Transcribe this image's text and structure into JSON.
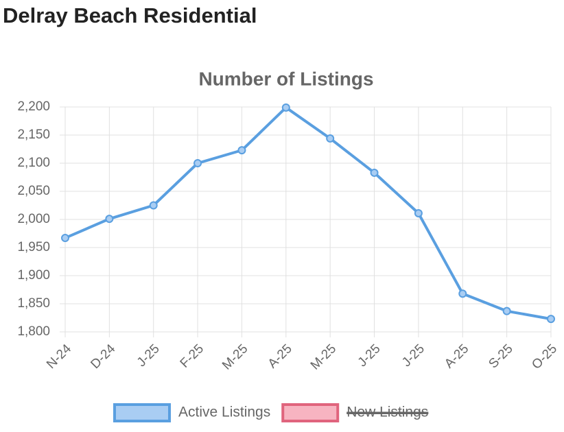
{
  "page_title": "Delray Beach Residential",
  "chart_data": {
    "type": "line",
    "title": "Number of Listings",
    "categories": [
      "N-24",
      "D-24",
      "J-25",
      "F-25",
      "M-25",
      "A-25",
      "M-25",
      "J-25",
      "J-25",
      "A-25",
      "S-25",
      "O-25"
    ],
    "series": [
      {
        "name": "Active Listings",
        "color": "#5a9fe0",
        "fill": "#a9cdf3",
        "values": [
          1967,
          2001,
          2025,
          2100,
          2123,
          2199,
          2144,
          2083,
          2011,
          1868,
          1837,
          1823
        ]
      },
      {
        "name": "New Listings",
        "color": "#e0647d",
        "fill": "#f7b4c1",
        "hidden": true
      }
    ],
    "ylim": [
      1800,
      2200
    ],
    "yticks": [
      {
        "value": 1800,
        "label": "1,800"
      },
      {
        "value": 1850,
        "label": "1,850"
      },
      {
        "value": 1900,
        "label": "1,900"
      },
      {
        "value": 1950,
        "label": "1,950"
      },
      {
        "value": 2000,
        "label": "2,000"
      },
      {
        "value": 2050,
        "label": "2,050"
      },
      {
        "value": 2100,
        "label": "2,100"
      },
      {
        "value": 2150,
        "label": "2,150"
      },
      {
        "value": 2200,
        "label": "2,200"
      }
    ],
    "grid": true,
    "legend": "bottom"
  }
}
